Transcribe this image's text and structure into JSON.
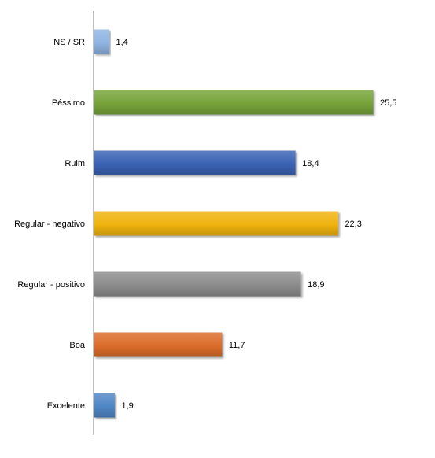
{
  "chart_data": {
    "type": "bar",
    "orientation": "horizontal",
    "categories": [
      "NS / SR",
      "Péssimo",
      "Ruim",
      "Regular - negativo",
      "Regular - positivo",
      "Boa",
      "Excelente"
    ],
    "values": [
      1.4,
      25.5,
      18.4,
      22.3,
      18.9,
      11.7,
      1.9
    ],
    "value_labels": [
      "1,4",
      "25,5",
      "18,4",
      "22,3",
      "18,9",
      "11,7",
      "1,9"
    ],
    "colors": [
      "#8fb4e3",
      "#77a33a",
      "#3a62b3",
      "#efb30f",
      "#8c8c8c",
      "#db6c2a",
      "#4f86c6"
    ],
    "title": "",
    "xlabel": "",
    "ylabel": "",
    "xlim": [
      0,
      30
    ],
    "grid": false,
    "legend": "none"
  }
}
